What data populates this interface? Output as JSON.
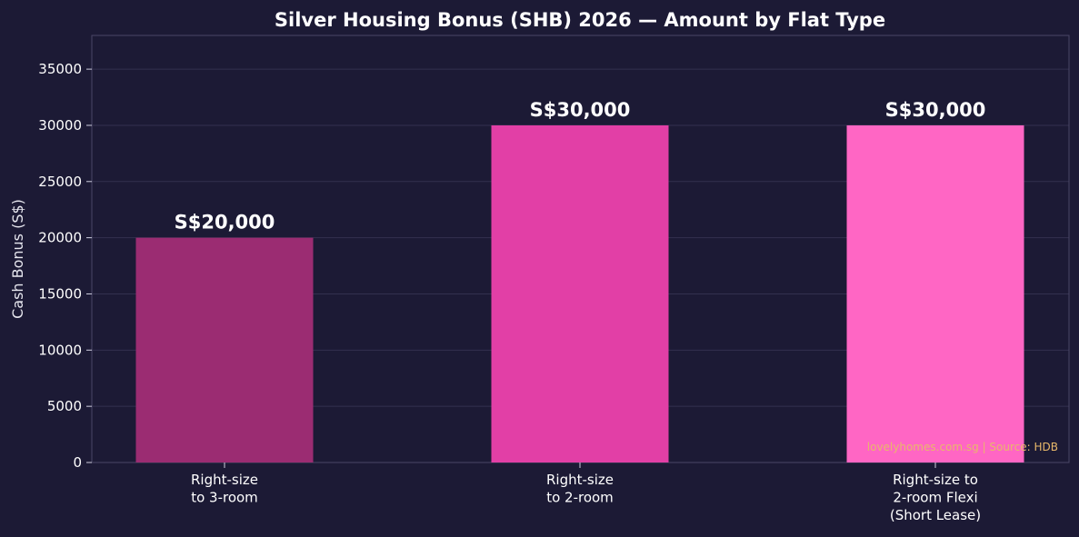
{
  "chart_data": {
    "type": "bar",
    "title": "Silver Housing Bonus (SHB) 2026 — Amount by Flat Type",
    "ylabel": "Cash Bonus (S$)",
    "xlabel": "",
    "ylim": [
      0,
      38000
    ],
    "yticks": [
      0,
      5000,
      10000,
      15000,
      20000,
      25000,
      30000,
      35000
    ],
    "categories": [
      [
        "Right-size",
        "to 3-room"
      ],
      [
        "Right-size",
        "to 2-room"
      ],
      [
        "Right-size to",
        "2-room Flexi",
        "(Short Lease)"
      ]
    ],
    "values": [
      20000,
      30000,
      30000
    ],
    "data_labels": [
      "S$20,000",
      "S$30,000",
      "S$30,000"
    ],
    "colors": [
      "#9b2c72",
      "#e23fa6",
      "#ff66c4"
    ],
    "grid": true,
    "source_note": "lovelyhomes.com.sg | Source: HDB"
  },
  "theme": {
    "background": "#1c1a35",
    "grid_color": "#33304f",
    "axis_color": "#4a4766"
  }
}
